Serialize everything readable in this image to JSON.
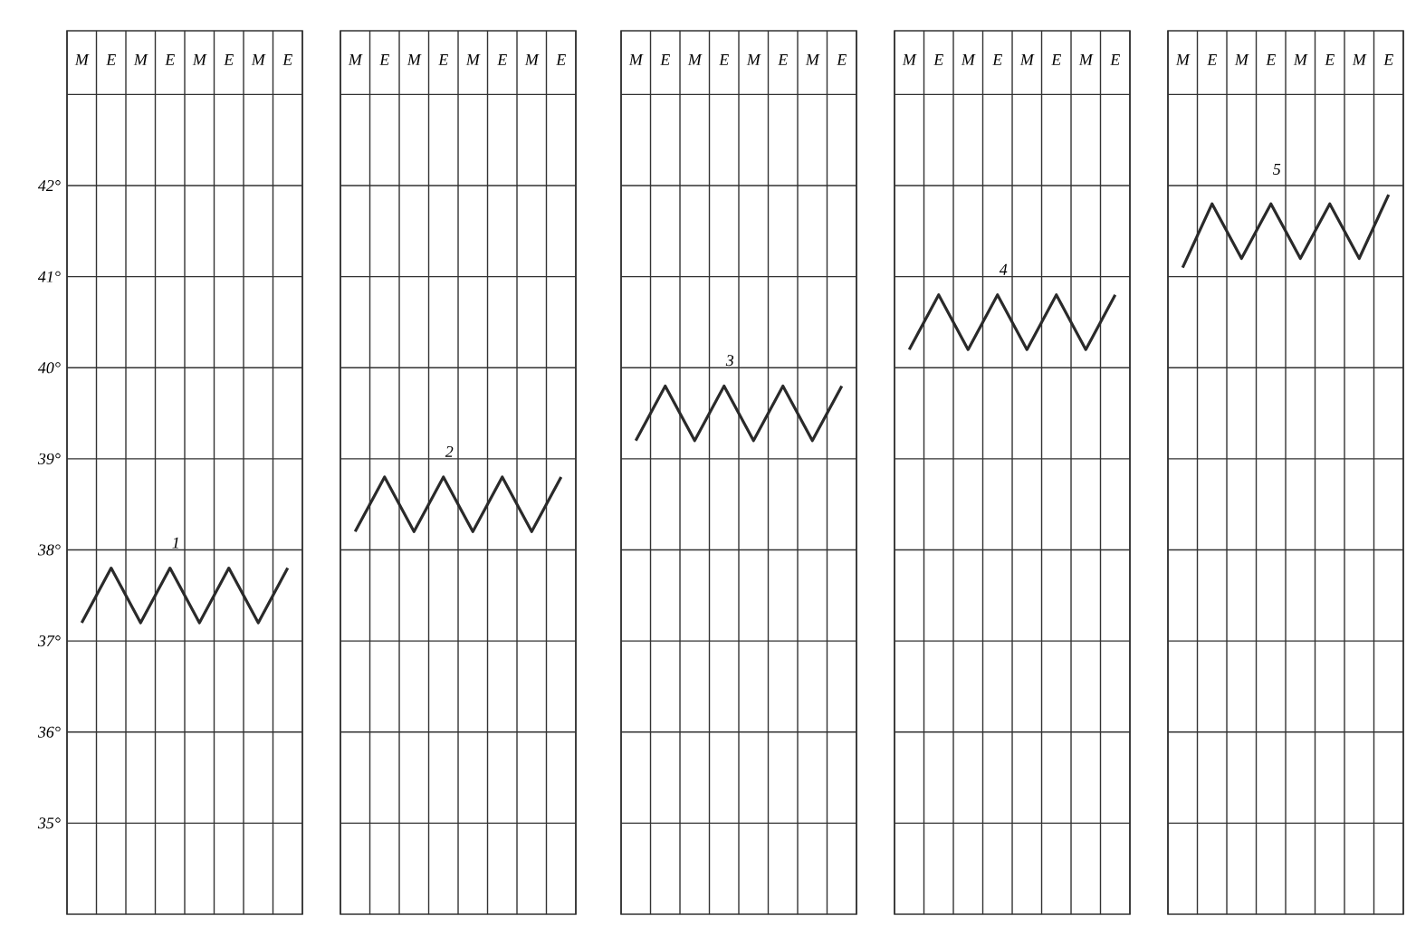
{
  "chart_data": [
    {
      "type": "line",
      "categories": [
        "M",
        "E",
        "M",
        "E",
        "M",
        "E",
        "M",
        "E"
      ],
      "series": [
        {
          "name": "1",
          "color": "#2a2a2a",
          "values": [
            37.2,
            37.8,
            37.2,
            37.8,
            37.2,
            37.8,
            37.2,
            37.8
          ]
        }
      ],
      "ylim": [
        34,
        43.7
      ],
      "yticks": [
        {
          "value": 35,
          "label": "35°"
        },
        {
          "value": 36,
          "label": "36°"
        },
        {
          "value": 37,
          "label": "37°"
        },
        {
          "value": 38,
          "label": "38°"
        },
        {
          "value": 39,
          "label": "39°"
        },
        {
          "value": 40,
          "label": "40°"
        },
        {
          "value": 41,
          "label": "41°"
        },
        {
          "value": 42,
          "label": "42°"
        },
        {
          "value": 43,
          "label": null
        }
      ],
      "grid": true
    },
    {
      "type": "line",
      "categories": [
        "M",
        "E",
        "M",
        "E",
        "M",
        "E",
        "M",
        "E"
      ],
      "series": [
        {
          "name": "2",
          "color": "#2a2a2a",
          "values": [
            38.2,
            38.8,
            38.2,
            38.8,
            38.2,
            38.8,
            38.2,
            38.8
          ]
        }
      ],
      "ylim": [
        34,
        43.7
      ],
      "yticks": [
        {
          "value": 35,
          "label": null
        },
        {
          "value": 36,
          "label": null
        },
        {
          "value": 37,
          "label": null
        },
        {
          "value": 38,
          "label": null
        },
        {
          "value": 39,
          "label": null
        },
        {
          "value": 40,
          "label": null
        },
        {
          "value": 41,
          "label": null
        },
        {
          "value": 42,
          "label": null
        },
        {
          "value": 43,
          "label": null
        }
      ],
      "grid": true,
      "tick_labels": "x"
    },
    {
      "type": "line",
      "categories": [
        "M",
        "E",
        "M",
        "E",
        "M",
        "E",
        "M",
        "E"
      ],
      "series": [
        {
          "name": "3",
          "color": "#2a2a2a",
          "values": [
            39.2,
            39.8,
            39.2,
            39.8,
            39.2,
            39.8,
            39.2,
            39.8
          ]
        }
      ],
      "ylim": [
        34,
        43.7
      ],
      "yticks": [
        {
          "value": 35,
          "label": null
        },
        {
          "value": 36,
          "label": null
        },
        {
          "value": 37,
          "label": null
        },
        {
          "value": 38,
          "label": null
        },
        {
          "value": 39,
          "label": null
        },
        {
          "value": 40,
          "label": null
        },
        {
          "value": 41,
          "label": null
        },
        {
          "value": 42,
          "label": null
        },
        {
          "value": 43,
          "label": null
        }
      ],
      "grid": true,
      "tick_labels": "x"
    },
    {
      "type": "line",
      "categories": [
        "M",
        "E",
        "M",
        "E",
        "M",
        "E",
        "M",
        "E"
      ],
      "series": [
        {
          "name": "4",
          "color": "#2a2a2a",
          "values": [
            40.2,
            40.8,
            40.2,
            40.8,
            40.2,
            40.8,
            40.2,
            40.8
          ]
        }
      ],
      "ylim": [
        34,
        43.7
      ],
      "yticks": [
        {
          "value": 35,
          "label": null
        },
        {
          "value": 36,
          "label": null
        },
        {
          "value": 37,
          "label": null
        },
        {
          "value": 38,
          "label": null
        },
        {
          "value": 39,
          "label": null
        },
        {
          "value": 40,
          "label": null
        },
        {
          "value": 41,
          "label": null
        },
        {
          "value": 42,
          "label": null
        },
        {
          "value": 43,
          "label": null
        }
      ],
      "grid": true,
      "tick_labels": "x"
    },
    {
      "type": "line",
      "categories": [
        "M",
        "E",
        "M",
        "E",
        "M",
        "E",
        "M",
        "E"
      ],
      "series": [
        {
          "name": "5",
          "color": "#2a2a2a",
          "values": [
            41.1,
            41.8,
            41.2,
            41.8,
            41.2,
            41.8,
            41.2,
            41.9
          ]
        }
      ],
      "ylim": [
        34,
        43.7
      ],
      "yticks": [
        {
          "value": 35,
          "label": null
        },
        {
          "value": 36,
          "label": null
        },
        {
          "value": 37,
          "label": null
        },
        {
          "value": 38,
          "label": null
        },
        {
          "value": 39,
          "label": null
        },
        {
          "value": 40,
          "label": null
        },
        {
          "value": 41,
          "label": null
        },
        {
          "value": 42,
          "label": null
        },
        {
          "value": 43,
          "label": null
        }
      ],
      "grid": true,
      "tick_labels": "x"
    }
  ]
}
